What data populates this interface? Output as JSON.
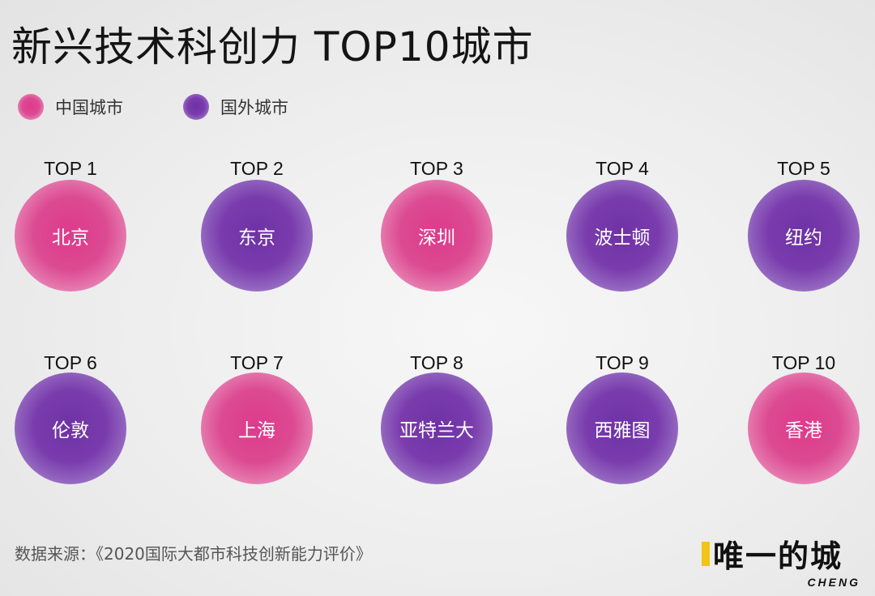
{
  "title": "新兴技术科创力 TOP10城市",
  "legend": [
    {
      "label": "中国城市",
      "color": "#dc3d8e"
    },
    {
      "label": "国外城市",
      "color": "#7437a8"
    }
  ],
  "cities": [
    {
      "rank": "TOP 1",
      "name": "北京",
      "type": "domestic"
    },
    {
      "rank": "TOP 2",
      "name": "东京",
      "type": "foreign"
    },
    {
      "rank": "TOP 3",
      "name": "深圳",
      "type": "domestic"
    },
    {
      "rank": "TOP 4",
      "name": "波士顿",
      "type": "foreign"
    },
    {
      "rank": "TOP 5",
      "name": "纽约",
      "type": "foreign"
    },
    {
      "rank": "TOP 6",
      "name": "伦敦",
      "type": "foreign"
    },
    {
      "rank": "TOP 7",
      "name": "上海",
      "type": "domestic"
    },
    {
      "rank": "TOP 8",
      "name": "亚特兰大",
      "type": "foreign"
    },
    {
      "rank": "TOP 9",
      "name": "西雅图",
      "type": "foreign"
    },
    {
      "rank": "TOP 10",
      "name": "香港",
      "type": "domestic"
    }
  ],
  "source": "数据来源：《2020国际大都市科技创新能力评价》",
  "logo": {
    "cn": "唯一的城",
    "en": "CHENG",
    "accent": "#f2c318"
  }
}
